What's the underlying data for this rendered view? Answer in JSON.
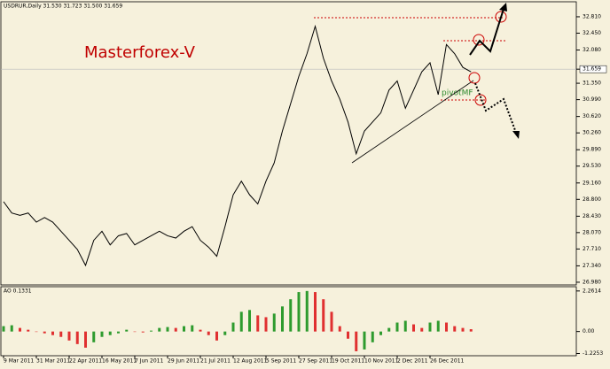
{
  "chart_data": [
    {
      "type": "line",
      "header": "USDRUR,Daily  31.530 31.723 31.500 31.659",
      "annotations": [
        "Masterforex-V",
        "pivotMF"
      ],
      "color": "#000000",
      "categories": [
        "9 Mar 2011",
        null,
        null,
        null,
        "31 Mar 2011",
        null,
        null,
        null,
        "22 Apr 2011",
        null,
        null,
        null,
        "16 May 2011",
        null,
        null,
        null,
        "7 Jun 2011",
        null,
        null,
        null,
        "29 Jun 2011",
        null,
        null,
        null,
        "21 Jul 2011",
        null,
        null,
        null,
        "12 Aug 2011",
        null,
        null,
        null,
        "5 Sep 2011",
        null,
        null,
        null,
        "27 Sep 2011",
        null,
        null,
        null,
        "19 Oct 2011",
        null,
        null,
        null,
        "10 Nov 2011",
        null,
        null,
        null,
        "2 Dec 2011",
        null,
        null,
        null,
        "26 Dec 2011",
        null,
        null,
        null,
        null,
        null
      ],
      "values": [
        28.75,
        28.5,
        28.45,
        28.5,
        28.3,
        28.4,
        28.3,
        28.1,
        27.9,
        27.7,
        27.35,
        27.9,
        28.1,
        27.8,
        28.0,
        28.05,
        27.8,
        27.9,
        28.0,
        28.1,
        28.0,
        27.95,
        28.1,
        28.2,
        27.9,
        27.75,
        27.55,
        28.2,
        28.9,
        29.2,
        28.9,
        28.7,
        29.2,
        29.6,
        30.3,
        30.9,
        31.5,
        32.0,
        32.6,
        31.9,
        31.4,
        31.0,
        30.5,
        29.8,
        30.3,
        30.5,
        30.7,
        31.2,
        31.4,
        30.8,
        31.2,
        31.6,
        31.8,
        31.1,
        32.2,
        32.0,
        31.7,
        31.6
      ],
      "ylim": [
        26.94,
        33.12
      ],
      "yticks": [
        {
          "value": 32.81,
          "label": "32.810"
        },
        {
          "value": 32.45,
          "label": "32.450"
        },
        {
          "value": 32.08,
          "label": "32.080"
        },
        31.659,
        {
          "value": 31.35,
          "label": "31.350"
        },
        {
          "value": 30.99,
          "label": "30.990"
        },
        {
          "value": 30.62,
          "label": "30.620"
        },
        {
          "value": 30.26,
          "label": "30.260"
        },
        {
          "value": 29.89,
          "label": "29.890"
        },
        {
          "value": 29.53,
          "label": "29.530"
        },
        {
          "value": 29.16,
          "label": "29.160"
        },
        {
          "value": 28.8,
          "label": "28.800"
        },
        {
          "value": 28.43,
          "label": "28.430"
        },
        {
          "value": 28.07,
          "label": "28.070"
        },
        {
          "value": 27.71,
          "label": "27.710"
        },
        {
          "value": 27.34,
          "label": "27.340"
        },
        {
          "value": 26.98,
          "label": "26.980"
        }
      ]
    },
    {
      "type": "bar",
      "title": "AO 0.1331",
      "up_color": "#2e9b2e",
      "down_color": "#e03030",
      "values": [
        0.3,
        0.35,
        0.2,
        0.1,
        0.0,
        -0.1,
        -0.2,
        -0.3,
        -0.5,
        -0.7,
        -0.9,
        -0.6,
        -0.3,
        -0.2,
        -0.1,
        0.1,
        0.0,
        -0.05,
        0.05,
        0.2,
        0.25,
        0.2,
        0.3,
        0.35,
        0.1,
        -0.2,
        -0.5,
        -0.2,
        0.5,
        1.1,
        1.2,
        0.9,
        0.8,
        1.0,
        1.4,
        1.8,
        2.2,
        2.26,
        2.2,
        1.8,
        1.1,
        0.3,
        -0.4,
        -1.1,
        -1.0,
        -0.6,
        -0.2,
        0.2,
        0.5,
        0.6,
        0.4,
        0.2,
        0.5,
        0.6,
        0.5,
        0.3,
        0.2,
        0.13
      ],
      "ylim": [
        -1.3,
        2.45
      ],
      "yticks": [
        2.2614,
        {
          "value": 0,
          "label": "0.00"
        },
        -1.2253
      ]
    }
  ]
}
